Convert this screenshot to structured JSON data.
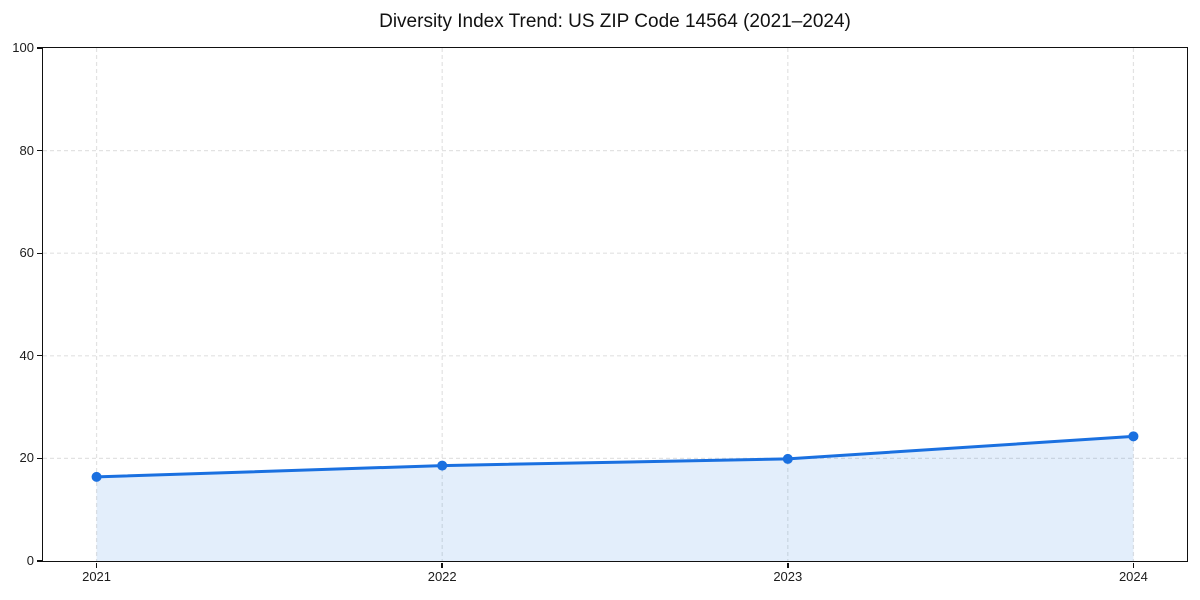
{
  "title": "Diversity Index Trend: US ZIP Code 14564 (2021–2024)",
  "colors": {
    "line": "#1a70e0",
    "fill": "#1a70e0",
    "fill_opacity": 0.12,
    "grid": "#e2e2e2",
    "spine": "#111111",
    "tick_text": "#1c1c1c",
    "background": "#ffffff"
  },
  "chart_data": {
    "type": "area",
    "title": "Diversity Index Trend: US ZIP Code 14564 (2021–2024)",
    "x": [
      2021,
      2022,
      2023,
      2024
    ],
    "xticklabels": [
      "2021",
      "2022",
      "2023",
      "2024"
    ],
    "yticks": [
      0,
      20,
      40,
      60,
      80,
      100
    ],
    "yticklabels": [
      "0",
      "20",
      "40",
      "60",
      "80",
      "100"
    ],
    "series": [
      {
        "name": "Diversity Index",
        "values": [
          16.4,
          18.6,
          19.9,
          24.3
        ]
      }
    ],
    "xlabel": "",
    "ylabel": "",
    "xlim": [
      2020.845,
      2024.155
    ],
    "ylim": [
      0,
      100
    ],
    "grid": true,
    "grid_style": "dashed",
    "legend": false,
    "marker": "circle",
    "line_width": 3,
    "marker_radius": 5
  }
}
